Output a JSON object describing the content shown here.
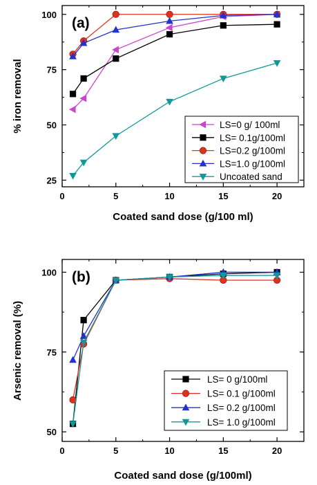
{
  "chart_data": [
    {
      "type": "line",
      "title": "",
      "panel_label": "(a)",
      "xlabel": "Coated sand dose  (g/100 ml)",
      "ylabel": "% iron removal",
      "xlim": [
        0,
        22.5
      ],
      "ylim": [
        22,
        104
      ],
      "xticks": [
        0,
        5,
        10,
        15,
        20
      ],
      "yticks": [
        25,
        50,
        75,
        100
      ],
      "grid": false,
      "legend_position": "bottom-right",
      "series": [
        {
          "name": "LS=0 g/ 100ml",
          "color": "#cc44cc",
          "marker": "triangle-left",
          "x": [
            1,
            2,
            5,
            10,
            15,
            20
          ],
          "y": [
            57,
            62,
            84,
            94,
            99,
            100
          ]
        },
        {
          "name": "LS= 0.1g/100ml",
          "color": "#000000",
          "marker": "square",
          "x": [
            1,
            2,
            5,
            10,
            15,
            20
          ],
          "y": [
            64,
            71,
            80,
            91,
            95,
            95.5
          ]
        },
        {
          "name": "LS=0.2 g/100ml",
          "color": "#e0301e",
          "marker": "circle",
          "x": [
            1,
            2,
            5,
            10,
            15,
            20
          ],
          "y": [
            82,
            88,
            100,
            100,
            100,
            100
          ]
        },
        {
          "name": "LS=1.0 g/100ml",
          "color": "#2233cc",
          "marker": "triangle-up",
          "x": [
            1,
            2,
            5,
            10,
            15,
            20
          ],
          "y": [
            81,
            87,
            93,
            97,
            99.5,
            100
          ]
        },
        {
          "name": "Uncoated sand",
          "color": "#119999",
          "marker": "triangle-down",
          "x": [
            1,
            2,
            5,
            10,
            15,
            20
          ],
          "y": [
            27,
            33,
            45,
            60.5,
            71,
            78
          ]
        }
      ]
    },
    {
      "type": "line",
      "title": "",
      "panel_label": "(b)",
      "xlabel": "Coated sand dose (g/100ml)",
      "ylabel": "Arsenic removal (%)",
      "xlim": [
        0,
        22.5
      ],
      "ylim": [
        47,
        104
      ],
      "xticks": [
        0,
        5,
        10,
        15,
        20
      ],
      "yticks": [
        50,
        75,
        100
      ],
      "grid": false,
      "legend_position": "bottom-right",
      "series": [
        {
          "name": "LS= 0 g/100ml",
          "color": "#000000",
          "marker": "square",
          "x": [
            1,
            2,
            5,
            10,
            15,
            20
          ],
          "y": [
            52.5,
            85,
            97.5,
            98.5,
            99.5,
            100
          ]
        },
        {
          "name": "LS= 0.1 g/100ml",
          "color": "#e0301e",
          "marker": "circle",
          "x": [
            1,
            2,
            5,
            10,
            15,
            20
          ],
          "y": [
            60,
            77.5,
            97.5,
            98,
            97.5,
            97.5
          ]
        },
        {
          "name": "LS= 0.2 g/100ml",
          "color": "#2233cc",
          "marker": "triangle-up",
          "x": [
            1,
            2,
            5,
            10,
            15,
            20
          ],
          "y": [
            72.5,
            80,
            97.5,
            98.5,
            100,
            100
          ]
        },
        {
          "name": "LS= 1.0 g/100ml",
          "color": "#119999",
          "marker": "triangle-down",
          "x": [
            1,
            2,
            5,
            10,
            15,
            20
          ],
          "y": [
            52.5,
            78,
            97.5,
            98.5,
            99,
            99
          ]
        }
      ]
    }
  ]
}
